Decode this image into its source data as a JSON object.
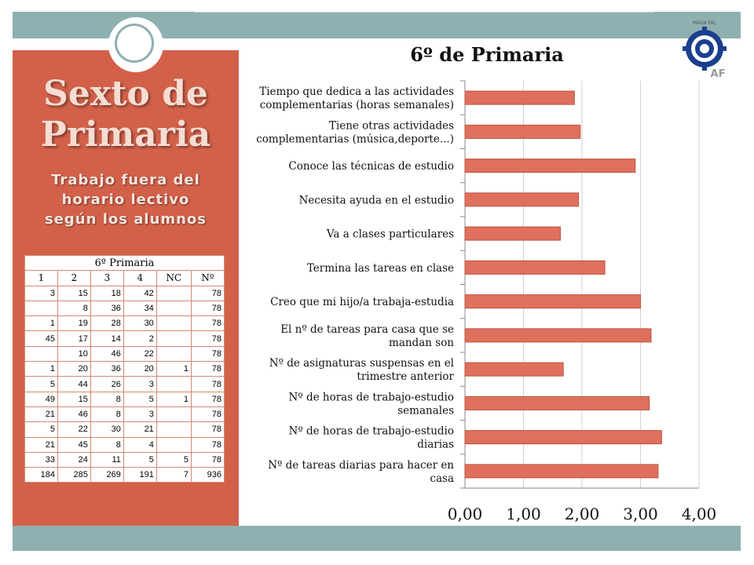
{
  "slide": {
    "title": "Sexto de Primaria",
    "subtitle_lines": [
      "Trabajo fuera del",
      "horario lectivo",
      "según los alumnos"
    ]
  },
  "table": {
    "caption": "6º Primaria",
    "headers": [
      "1",
      "2",
      "3",
      "4",
      "NC",
      "Nº"
    ],
    "rows": [
      [
        "3",
        "15",
        "18",
        "42",
        "",
        "78"
      ],
      [
        "",
        "8",
        "36",
        "34",
        "",
        "78"
      ],
      [
        "1",
        "19",
        "28",
        "30",
        "",
        "78"
      ],
      [
        "45",
        "17",
        "14",
        "2",
        "",
        "78"
      ],
      [
        "",
        "10",
        "46",
        "22",
        "",
        "78"
      ],
      [
        "1",
        "20",
        "36",
        "20",
        "1",
        "78"
      ],
      [
        "5",
        "44",
        "26",
        "3",
        "",
        "78"
      ],
      [
        "49",
        "15",
        "8",
        "5",
        "1",
        "78"
      ],
      [
        "21",
        "46",
        "8",
        "3",
        "",
        "78"
      ],
      [
        "5",
        "22",
        "30",
        "21",
        "",
        "78"
      ],
      [
        "21",
        "45",
        "8",
        "4",
        "",
        "78"
      ],
      [
        "33",
        "24",
        "11",
        "5",
        "5",
        "78"
      ],
      [
        "184",
        "285",
        "269",
        "191",
        "7",
        "936"
      ]
    ]
  },
  "logo": {
    "text_top": "MADA FAL",
    "text_bottom": "AF"
  },
  "chart_data": {
    "type": "bar",
    "orientation": "horizontal",
    "title": "6º de Primaria",
    "categories": [
      [
        "Tiempo que dedica a las actividades",
        "complementarias (horas semanales)"
      ],
      [
        "Tiene otras actividades",
        "complementarias (música,deporte...)"
      ],
      [
        "Conoce las técnicas de estudio"
      ],
      [
        "Necesita ayuda en el estudio"
      ],
      [
        "Va a clases particulares"
      ],
      [
        "Termina las tareas en clase"
      ],
      [
        "Creo que mi hijo/a trabaja-estudia"
      ],
      [
        "El nº de tareas para casa que se",
        "mandan son"
      ],
      [
        "Nº de asignaturas suspensas en el",
        "trimestre anterior"
      ],
      [
        "Nº de horas de trabajo-estudio",
        "semanales"
      ],
      [
        "Nº de horas de trabajo-estudio",
        "diarias"
      ],
      [
        "Nº de tareas diarias para hacer en",
        "casa"
      ]
    ],
    "values": [
      1.87,
      1.97,
      2.91,
      1.94,
      1.63,
      2.39,
      3.0,
      3.18,
      1.68,
      3.15,
      3.36,
      3.3
    ],
    "xlim": [
      0,
      4
    ],
    "xticks": [
      "0,00",
      "1,00",
      "2,00",
      "3,00",
      "4,00"
    ],
    "grid": true,
    "bar_color": "#e0705e",
    "bar_edge_color": "#b9533f"
  },
  "colors": {
    "panel": "#d3614a",
    "band": "#8fb0b0",
    "bar": "#e0705e"
  }
}
